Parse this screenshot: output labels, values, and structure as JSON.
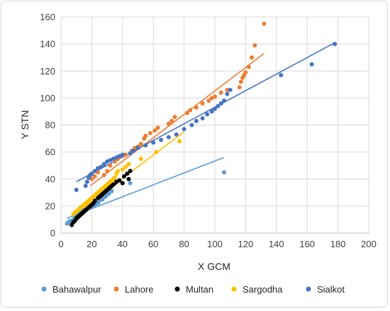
{
  "chart_data": {
    "type": "scatter",
    "title": "",
    "xlabel": "X GCM",
    "ylabel": "Y STN",
    "xlim": [
      0,
      200
    ],
    "ylim": [
      0,
      160
    ],
    "x_ticks": [
      0,
      20,
      40,
      60,
      80,
      100,
      120,
      140,
      160,
      180,
      200
    ],
    "y_ticks": [
      0,
      20,
      40,
      60,
      80,
      100,
      120,
      140,
      160
    ],
    "grid": true,
    "legend_position": "bottom",
    "series": [
      {
        "name": "Bahawalpur",
        "color": "#5b9bd5",
        "points": [
          [
            4,
            7
          ],
          [
            5,
            8
          ],
          [
            6,
            9
          ],
          [
            7,
            9
          ],
          [
            8,
            10
          ],
          [
            9,
            12
          ],
          [
            10,
            13
          ],
          [
            11,
            14
          ],
          [
            12,
            15
          ],
          [
            13,
            16
          ],
          [
            15,
            17
          ],
          [
            17,
            18
          ],
          [
            19,
            19
          ],
          [
            21,
            20
          ],
          [
            22,
            21
          ],
          [
            24,
            22
          ],
          [
            25,
            24
          ],
          [
            27,
            25
          ],
          [
            29,
            27
          ],
          [
            31,
            29
          ],
          [
            33,
            31
          ],
          [
            45,
            37
          ],
          [
            106,
            45
          ]
        ],
        "trend": [
          [
            4,
            11
          ],
          [
            106,
            56
          ]
        ]
      },
      {
        "name": "Lahore",
        "color": "#ed7d31",
        "points": [
          [
            20,
            40
          ],
          [
            22,
            42
          ],
          [
            24,
            45
          ],
          [
            28,
            43
          ],
          [
            30,
            46
          ],
          [
            32,
            50
          ],
          [
            35,
            53
          ],
          [
            37,
            55
          ],
          [
            40,
            57
          ],
          [
            42,
            58
          ],
          [
            46,
            61
          ],
          [
            48,
            63
          ],
          [
            50,
            64
          ],
          [
            52,
            66
          ],
          [
            54,
            70
          ],
          [
            55,
            72
          ],
          [
            58,
            74
          ],
          [
            61,
            76
          ],
          [
            63,
            78
          ],
          [
            70,
            81
          ],
          [
            72,
            83
          ],
          [
            74,
            86
          ],
          [
            82,
            89
          ],
          [
            84,
            91
          ],
          [
            88,
            93
          ],
          [
            92,
            96
          ],
          [
            96,
            98
          ],
          [
            98,
            100
          ],
          [
            100,
            101
          ],
          [
            104,
            104
          ],
          [
            108,
            106
          ],
          [
            116,
            108
          ],
          [
            117,
            112
          ],
          [
            118,
            115
          ],
          [
            119,
            117
          ],
          [
            120,
            119
          ],
          [
            122,
            123
          ],
          [
            124,
            130
          ],
          [
            126,
            139
          ],
          [
            132,
            155
          ]
        ],
        "trend": [
          [
            19,
            35
          ],
          [
            132,
            133
          ]
        ]
      },
      {
        "name": "Multan",
        "color": "#000000",
        "points": [
          [
            7,
            6
          ],
          [
            8,
            8
          ],
          [
            9,
            9
          ],
          [
            10,
            11
          ],
          [
            11,
            12
          ],
          [
            12,
            13
          ],
          [
            13,
            14
          ],
          [
            14,
            15
          ],
          [
            15,
            16
          ],
          [
            16,
            17
          ],
          [
            17,
            18
          ],
          [
            18,
            19
          ],
          [
            19,
            20
          ],
          [
            20,
            21
          ],
          [
            21,
            22
          ],
          [
            22,
            24
          ],
          [
            24,
            26
          ],
          [
            25,
            27
          ],
          [
            26,
            28
          ],
          [
            27,
            29
          ],
          [
            28,
            30
          ],
          [
            29,
            31
          ],
          [
            30,
            32
          ],
          [
            31,
            33
          ],
          [
            32,
            35
          ],
          [
            34,
            36
          ],
          [
            36,
            38
          ],
          [
            38,
            39
          ],
          [
            40,
            37
          ],
          [
            41,
            42
          ],
          [
            43,
            44
          ],
          [
            44,
            40
          ],
          [
            45,
            46
          ]
        ],
        "trend": [
          [
            7,
            6
          ],
          [
            45,
            46
          ]
        ]
      },
      {
        "name": "Sargodha",
        "color": "#ffc000",
        "points": [
          [
            8,
            14
          ],
          [
            9,
            15
          ],
          [
            10,
            16
          ],
          [
            11,
            17
          ],
          [
            12,
            18
          ],
          [
            13,
            19
          ],
          [
            14,
            20
          ],
          [
            15,
            21
          ],
          [
            16,
            22
          ],
          [
            17,
            23
          ],
          [
            18,
            24
          ],
          [
            19,
            25
          ],
          [
            20,
            26
          ],
          [
            21,
            27
          ],
          [
            22,
            28
          ],
          [
            23,
            29
          ],
          [
            24,
            30
          ],
          [
            25,
            31
          ],
          [
            26,
            32
          ],
          [
            27,
            33
          ],
          [
            28,
            34
          ],
          [
            29,
            35
          ],
          [
            30,
            36
          ],
          [
            31,
            37
          ],
          [
            32,
            38
          ],
          [
            33,
            39
          ],
          [
            34,
            40
          ],
          [
            35,
            41
          ],
          [
            36,
            44
          ],
          [
            37,
            46
          ],
          [
            40,
            47
          ],
          [
            42,
            49
          ],
          [
            44,
            51
          ],
          [
            52,
            55
          ],
          [
            62,
            60
          ],
          [
            77,
            68
          ]
        ],
        "trend": [
          [
            8,
            13
          ],
          [
            80,
            75
          ]
        ]
      },
      {
        "name": "Sialkot",
        "color": "#4472c4",
        "points": [
          [
            10,
            32
          ],
          [
            16,
            35
          ],
          [
            17,
            38
          ],
          [
            18,
            41
          ],
          [
            19,
            43
          ],
          [
            20,
            44
          ],
          [
            22,
            46
          ],
          [
            24,
            48
          ],
          [
            26,
            49
          ],
          [
            28,
            51
          ],
          [
            30,
            53
          ],
          [
            32,
            54
          ],
          [
            34,
            55
          ],
          [
            36,
            56
          ],
          [
            38,
            57
          ],
          [
            40,
            58
          ],
          [
            45,
            59
          ],
          [
            47,
            61
          ],
          [
            50,
            63
          ],
          [
            55,
            65
          ],
          [
            60,
            67
          ],
          [
            65,
            69
          ],
          [
            70,
            71
          ],
          [
            75,
            73
          ],
          [
            80,
            77
          ],
          [
            85,
            80
          ],
          [
            88,
            83
          ],
          [
            92,
            85
          ],
          [
            95,
            88
          ],
          [
            98,
            90
          ],
          [
            100,
            92
          ],
          [
            102,
            94
          ],
          [
            104,
            96
          ],
          [
            106,
            98
          ],
          [
            108,
            103
          ],
          [
            110,
            106
          ],
          [
            143,
            117
          ],
          [
            163,
            125
          ],
          [
            178,
            140
          ]
        ],
        "trend": [
          [
            10,
            38
          ],
          [
            178,
            141
          ]
        ]
      }
    ]
  }
}
